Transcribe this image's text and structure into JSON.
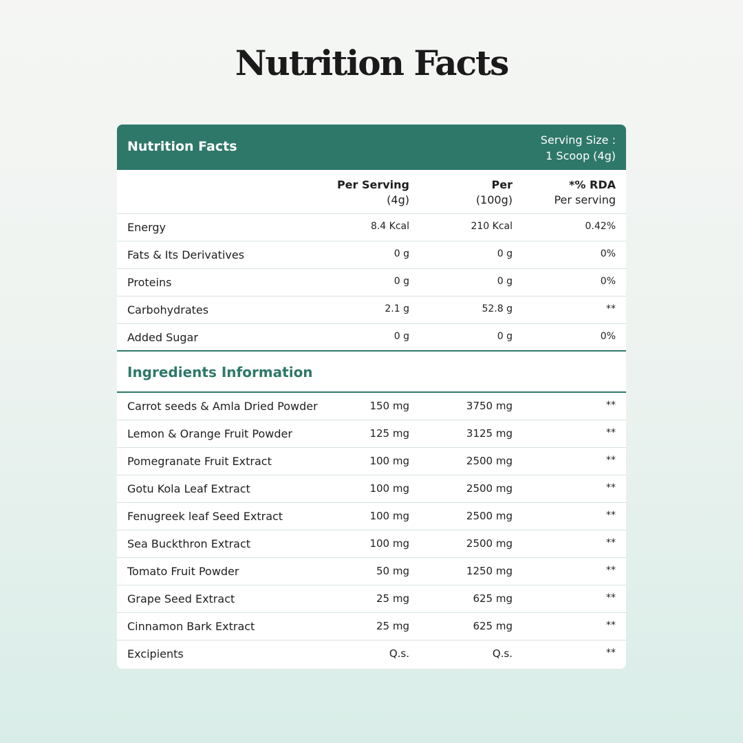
{
  "title": "Nutrition Facts",
  "table": {
    "header": {
      "title": "Nutrition Facts",
      "serving_size": [
        "Serving Size :",
        "1 Scoop (4g)"
      ]
    },
    "columns": [
      [
        "Per Serving",
        "(4g)"
      ],
      [
        "Per",
        "(100g)"
      ],
      [
        "*% RDA",
        "Per serving"
      ]
    ],
    "nutrients": [
      [
        "Energy",
        "8.4 Kcal",
        "210 Kcal",
        "0.42%"
      ],
      [
        "Fats & Its Derivatives",
        "0 g",
        "0 g",
        "0%"
      ],
      [
        "Proteins",
        "0 g",
        "0 g",
        "0%"
      ],
      [
        "Carbohydrates",
        "2.1 g",
        "52.8 g",
        "**"
      ],
      [
        "Added Sugar",
        "0 g",
        "0 g",
        "0%"
      ]
    ],
    "ingredients_title": "Ingredients Information",
    "ingredients": [
      [
        "Carrot seeds & Amla Dried Powder",
        "150 mg",
        "3750 mg",
        "**"
      ],
      [
        "Lemon & Orange Fruit Powder",
        "125 mg",
        "3125 mg",
        "**"
      ],
      [
        "Pomegranate Fruit Extract",
        "100 mg",
        "2500 mg",
        "**"
      ],
      [
        "Gotu Kola Leaf Extract",
        "100 mg",
        "2500 mg",
        "**"
      ],
      [
        "Fenugreek leaf Seed Extract",
        "100 mg",
        "2500 mg",
        "**"
      ],
      [
        "Sea Buckthron Extract",
        "100 mg",
        "2500 mg",
        "**"
      ],
      [
        "Tomato Fruit Powder",
        "50 mg",
        "1250 mg",
        "**"
      ],
      [
        "Grape Seed Extract",
        "25 mg",
        "625 mg",
        "**"
      ],
      [
        "Cinnamon Bark Extract",
        "25 mg",
        "625 mg",
        "**"
      ],
      [
        "Excipients",
        "Q.s.",
        "Q.s.",
        "**"
      ]
    ]
  }
}
